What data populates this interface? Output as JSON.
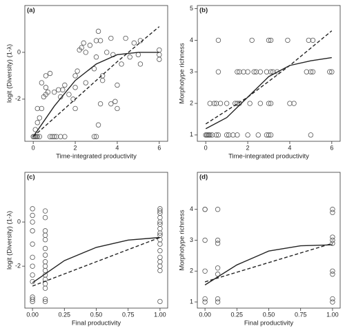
{
  "chart_data": [
    {
      "type": "scatter",
      "panel_label": "(a)",
      "xlabel": "Time-integrated productivity",
      "ylabel": "logit (Diversity) (1-λ)",
      "xlim": [
        -0.4,
        6.4
      ],
      "ylim": [
        -3.8,
        2.0
      ],
      "xticks": [
        0,
        2,
        4,
        6
      ],
      "yticks": [
        -2,
        0
      ],
      "series": [
        {
          "type": "scatter",
          "color": "#555555",
          "x": [
            0,
            0.05,
            0.1,
            0.15,
            0.2,
            0.3,
            0.8,
            0.9,
            1.0,
            1.1,
            1.3,
            1.5,
            2.9,
            3.0,
            0.1,
            0.2,
            0.3,
            0.2,
            0.4,
            0.5,
            0.6,
            0.6,
            0.7,
            0.4,
            0.6,
            0.8,
            1.0,
            1.2,
            1.3,
            1.4,
            1.5,
            1.7,
            2.0,
            2.0,
            2.1,
            2.2,
            2.3,
            2.4,
            2.5,
            2.5,
            2.7,
            2.9,
            3.0,
            3.0,
            3.1,
            3.2,
            3.3,
            3.3,
            3.2,
            3.1,
            3.5,
            3.7,
            3.8,
            4.0,
            4.2,
            4.4,
            4.6,
            4.8,
            5.0,
            5.1,
            5.1,
            6.0,
            6.0,
            6.0,
            1.9,
            2.0,
            4.0,
            3.9,
            3.7
          ],
          "values": [
            -3.6,
            -3.6,
            -3.6,
            -3.6,
            -3.6,
            -3.6,
            -3.6,
            -3.6,
            -3.6,
            -3.6,
            -3.6,
            -3.6,
            -3.6,
            -3.6,
            -3.3,
            -3.0,
            -2.8,
            -2.4,
            -2.4,
            -1.9,
            -1.8,
            -1.5,
            -1.7,
            -1.3,
            -1.0,
            -0.9,
            -1.7,
            -1.6,
            -1.9,
            -1.6,
            -1.4,
            -1.8,
            -1.5,
            -1.0,
            -0.8,
            0.1,
            0.2,
            0.4,
            0.0,
            -1.3,
            0.3,
            -0.7,
            -0.2,
            0.5,
            0.9,
            0.5,
            -1.2,
            -1.0,
            -2.2,
            -3.1,
            0.0,
            -2.2,
            -0.1,
            -1.4,
            -0.5,
            0.6,
            -0.2,
            0.4,
            -0.1,
            0.5,
            -0.5,
            0.1,
            -0.1,
            -0.3,
            -2.0,
            -2.4,
            -2.4,
            -2.1,
            0.6
          ]
        },
        {
          "type": "line",
          "style": "solid",
          "color": "#222222",
          "x": [
            0,
            1,
            2,
            3,
            4,
            5,
            6
          ],
          "values": [
            -3.6,
            -2.3,
            -1.2,
            -0.5,
            -0.1,
            0.0,
            0.0
          ]
        },
        {
          "type": "line",
          "style": "dashed",
          "color": "#222222",
          "x": [
            0,
            2,
            4,
            6
          ],
          "values": [
            -3.6,
            -2.0,
            -0.4,
            1.1
          ]
        }
      ]
    },
    {
      "type": "scatter",
      "panel_label": "(b)",
      "xlabel": "Time-integrated productivity",
      "ylabel": "Morphotype richness",
      "xlim": [
        -0.4,
        6.4
      ],
      "ylim": [
        0.8,
        5.1
      ],
      "xticks": [
        0,
        2,
        4,
        6
      ],
      "yticks": [
        1,
        2,
        3,
        4,
        5
      ],
      "series": [
        {
          "type": "scatter",
          "color": "#555555",
          "x": [
            0,
            0.05,
            0.1,
            0.15,
            0.2,
            0.3,
            0.5,
            0.6,
            1.0,
            1.1,
            1.3,
            1.5,
            2.0,
            2.5,
            2.9,
            3.0,
            3.1,
            5.0,
            0.2,
            0.4,
            0.5,
            0.7,
            1.0,
            1.4,
            1.5,
            1.6,
            2.1,
            2.6,
            3.0,
            3.1,
            4.0,
            4.2,
            0.6,
            1.5,
            1.6,
            1.8,
            2.0,
            2.3,
            2.4,
            2.6,
            2.9,
            3.1,
            3.2,
            3.4,
            4.8,
            5.0,
            5.1,
            5.9,
            6.0,
            0.6,
            2.2,
            3.0,
            3.1,
            3.9,
            4.9,
            5.1
          ],
          "values": [
            1,
            1,
            1,
            1,
            1,
            1,
            1,
            1,
            1,
            1,
            1,
            1,
            1,
            1,
            1,
            1,
            1,
            1,
            2,
            2,
            2,
            2,
            2,
            2,
            2,
            2,
            2,
            2,
            2,
            2,
            2,
            2,
            3,
            3,
            3,
            3,
            3,
            3,
            3,
            3,
            3,
            3,
            3,
            3,
            3,
            3,
            3,
            3,
            3,
            4,
            4,
            4,
            4,
            4,
            4,
            4
          ]
        },
        {
          "type": "line",
          "style": "solid",
          "color": "#222222",
          "x": [
            0,
            1,
            2,
            3,
            4,
            5,
            6
          ],
          "values": [
            1.2,
            1.55,
            2.2,
            2.85,
            3.2,
            3.35,
            3.45
          ]
        },
        {
          "type": "line",
          "style": "dashed",
          "color": "#222222",
          "x": [
            0,
            2,
            4,
            6
          ],
          "values": [
            1.35,
            2.2,
            3.2,
            4.3
          ]
        }
      ]
    },
    {
      "type": "scatter",
      "panel_label": "(c)",
      "xlabel": "Final productivity",
      "ylabel": "logit (Diversity) (1-λ)",
      "xlim": [
        -0.06,
        1.06
      ],
      "ylim": [
        -3.9,
        2.25
      ],
      "xticks": [
        {
          "value": 0,
          "label": "0.00"
        },
        {
          "value": 0.25,
          "label": "0.25"
        },
        {
          "value": 0.5,
          "label": "0.50"
        },
        {
          "value": 0.75,
          "label": "0.75"
        },
        {
          "value": 1,
          "label": "1.00"
        }
      ],
      "yticks": [
        -2,
        0
      ],
      "series": [
        {
          "type": "scatter",
          "color": "#555555",
          "x": [
            0,
            0,
            0,
            0,
            0,
            0,
            0,
            0,
            0,
            0,
            0,
            0,
            0.1,
            0.1,
            0.1,
            0.1,
            0.1,
            0.1,
            0.1,
            0.1,
            0.1,
            0.1,
            0.1,
            0.1,
            0.1,
            0.1,
            0.1,
            0.1,
            1,
            1,
            1,
            1,
            1,
            1,
            1,
            1,
            1,
            1,
            1,
            1,
            1,
            1,
            1,
            1,
            1
          ],
          "values": [
            0.6,
            0.3,
            0.0,
            -0.4,
            -1.0,
            -1.6,
            -2.0,
            -2.4,
            -2.7,
            -3.4,
            -3.5,
            -3.6,
            0.5,
            0.2,
            -0.4,
            -0.6,
            -0.8,
            -1.2,
            -1.5,
            -1.8,
            -2.0,
            -2.2,
            -2.4,
            -2.6,
            -2.8,
            -3.0,
            -3.5,
            -3.6,
            0.6,
            0.4,
            0.2,
            0.0,
            -0.1,
            -0.3,
            -0.5,
            -0.8,
            -1.0,
            -1.3,
            -1.6,
            -1.8,
            -2.0,
            -2.2,
            -3.6,
            0.5,
            -0.6
          ]
        },
        {
          "type": "line",
          "style": "solid",
          "color": "#222222",
          "x": [
            0,
            0.25,
            0.5,
            0.75,
            1
          ],
          "values": [
            -2.75,
            -1.75,
            -1.15,
            -0.82,
            -0.7
          ]
        },
        {
          "type": "line",
          "style": "dashed",
          "color": "#222222",
          "x": [
            0,
            1
          ],
          "values": [
            -2.9,
            -0.7
          ]
        }
      ]
    },
    {
      "type": "scatter",
      "panel_label": "(d)",
      "xlabel": "Final productivity",
      "ylabel": "Morphotype richness",
      "xlim": [
        -0.06,
        1.06
      ],
      "ylim": [
        0.8,
        5.2
      ],
      "xticks": [
        {
          "value": 0,
          "label": "0.00"
        },
        {
          "value": 0.25,
          "label": "0.25"
        },
        {
          "value": 0.5,
          "label": "0.50"
        },
        {
          "value": 0.75,
          "label": "0.75"
        },
        {
          "value": 1,
          "label": "1.00"
        }
      ],
      "yticks": [
        1,
        2,
        3,
        4
      ],
      "series": [
        {
          "type": "scatter",
          "color": "#555555",
          "x": [
            0,
            0,
            0,
            0,
            0,
            0,
            0.1,
            0.1,
            0.1,
            0.1,
            0.1,
            0.1,
            0.1,
            1,
            1,
            1,
            1,
            1,
            1,
            1,
            1,
            1
          ],
          "values": [
            4.0,
            4.0,
            3.0,
            2.0,
            1.1,
            1.0,
            4.0,
            3.0,
            2.9,
            2.1,
            1.9,
            1.1,
            1.0,
            4.0,
            3.9,
            3.1,
            3.0,
            2.9,
            2.0,
            1.9,
            1.1,
            1.0
          ]
        },
        {
          "type": "line",
          "style": "solid",
          "color": "#222222",
          "x": [
            0,
            0.25,
            0.5,
            0.75,
            1
          ],
          "values": [
            1.55,
            2.2,
            2.65,
            2.82,
            2.85
          ]
        },
        {
          "type": "line",
          "style": "dashed",
          "color": "#222222",
          "x": [
            0,
            1
          ],
          "values": [
            1.65,
            2.9
          ]
        }
      ]
    }
  ]
}
